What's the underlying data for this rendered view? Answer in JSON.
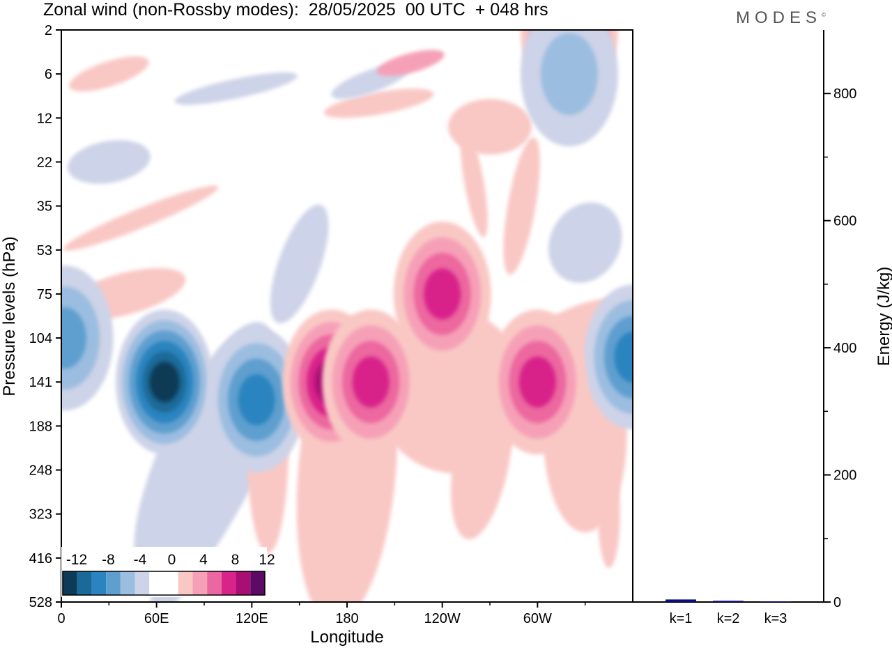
{
  "title": "Zonal wind (non-Rossby modes):  28/05/2025  00 UTC  + 048 hrs",
  "brand": "MODES",
  "brand_mark": "©",
  "colors": {
    "negative": [
      "#0d3a57",
      "#1a6a99",
      "#2b84bf",
      "#5e9fcf",
      "#9bbde0",
      "#cdd3e8"
    ],
    "neutral": "#ffffff",
    "positive": [
      "#f9c8c4",
      "#f6a0b7",
      "#ec679f",
      "#d8248a",
      "#a80e73",
      "#5c0a63"
    ],
    "bar": "#0d0d7a"
  },
  "chart_data": [
    {
      "type": "heatmap",
      "title": "Zonal wind (non-Rossby modes):  28/05/2025  00 UTC  + 048 hrs",
      "xlabel": "Longitude",
      "ylabel": "Pressure levels (hPa)",
      "x_ticks": [
        "0",
        "60E",
        "120E",
        "180",
        "120W",
        "60W"
      ],
      "x_range": [
        0,
        360
      ],
      "y_ticks": [
        "2",
        "6",
        "12",
        "22",
        "35",
        "53",
        "75",
        "104",
        "141",
        "188",
        "248",
        "323",
        "416",
        "528"
      ],
      "y_reversed": true,
      "colorbar": {
        "labels": [
          "-12",
          "-8",
          "-4",
          "0",
          "4",
          "8",
          "12"
        ],
        "levels": [
          -14,
          -12,
          -10,
          -8,
          -6,
          -4,
          -2,
          2,
          4,
          6,
          8,
          10,
          12,
          14
        ],
        "placement": "bottom-left"
      },
      "features": [
        {
          "lon": 65,
          "level": 141,
          "value": -13
        },
        {
          "lon": 2,
          "level": 104,
          "value": -6
        },
        {
          "lon": 123,
          "level": 160,
          "value": -9
        },
        {
          "lon": 360,
          "level": 120,
          "value": -8
        },
        {
          "lon": 170,
          "level": 141,
          "value": 11
        },
        {
          "lon": 195,
          "level": 141,
          "value": 8
        },
        {
          "lon": 300,
          "level": 141,
          "value": 9
        },
        {
          "lon": 240,
          "level": 75,
          "value": 8
        },
        {
          "lon": 320,
          "level": 2,
          "value": 10
        },
        {
          "lon": 320,
          "level": 6,
          "value": -5
        }
      ]
    },
    {
      "type": "bar",
      "xlabel": "",
      "ylabel": "Energy (J/kg)",
      "categories": [
        "k=1",
        "k=2",
        "k=3"
      ],
      "values": [
        4,
        2,
        1
      ],
      "ylim": [
        0,
        900
      ],
      "y_ticks": [
        "0",
        "200",
        "400",
        "600",
        "800"
      ],
      "y_axis_side": "right"
    }
  ]
}
